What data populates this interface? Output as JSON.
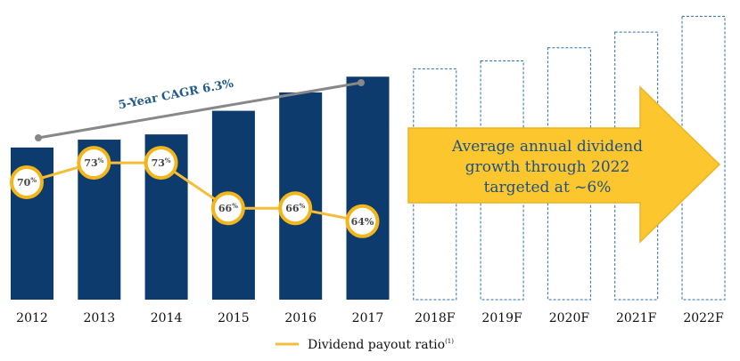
{
  "chart_data": {
    "type": "bar",
    "categories": [
      "2012",
      "2013",
      "2014",
      "2015",
      "2016",
      "2017",
      "2018F",
      "2019F",
      "2020F",
      "2021F",
      "2022F"
    ],
    "dividend_bars": {
      "note": "relative dividend bar heights (unlabeled; estimated, arbitrary units)",
      "actual_values": [
        58,
        61,
        63,
        72,
        79,
        85
      ],
      "forecast_values": [
        88,
        91,
        96,
        102,
        108
      ]
    },
    "payout_ratio_series": {
      "name": "Dividend payout ratio",
      "footnote_marker": "(1)",
      "values": [
        70,
        73,
        73,
        66,
        66,
        64
      ],
      "label_numbers": [
        "70",
        "73",
        "73",
        "66",
        "66",
        "64"
      ],
      "unit": "%",
      "label_styles": [
        "sup",
        "sup",
        "sup",
        "sup",
        "sup",
        "inline"
      ]
    },
    "cagr_annotation": "5-Year CAGR 6.3%",
    "arrow_text_lines": [
      "Average annual dividend",
      "growth through 2022",
      "targeted at ~6%"
    ],
    "colors": {
      "bar": "#0d3b6e",
      "forecast_outline": "#2d6ea8",
      "ratio_line": "#f5be3a",
      "badge_ring": "#f2b51a",
      "arrow_fill": "#fcc72e",
      "arrow_stroke": "#e9b323",
      "arrow_text": "#1f4f84",
      "cagr_text": "#1f5a8a",
      "cagr_line": "#888888"
    }
  }
}
